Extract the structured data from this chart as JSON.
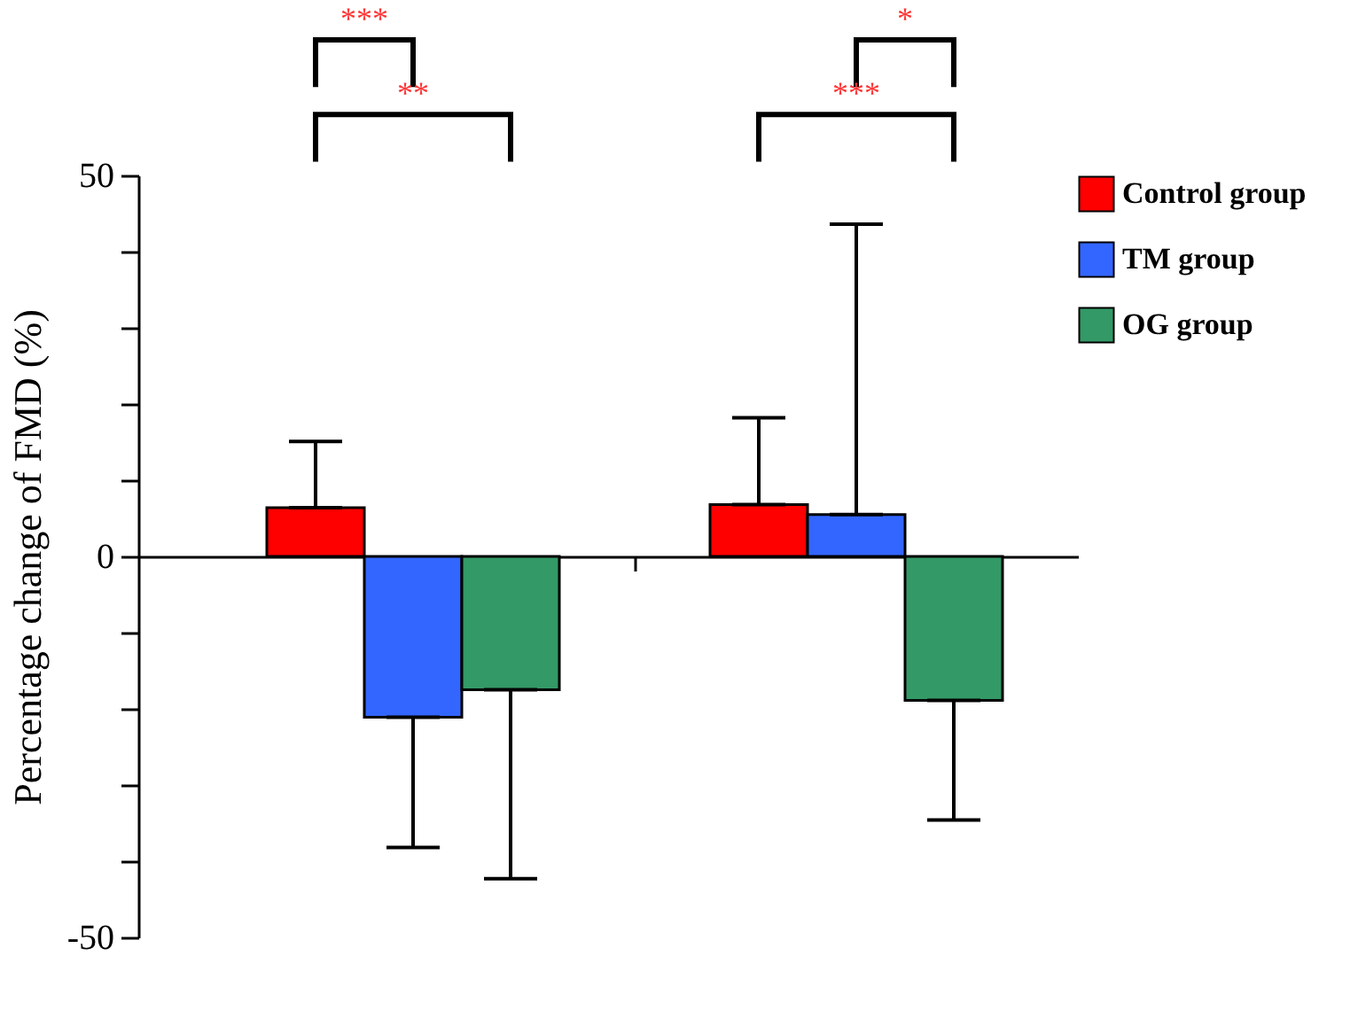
{
  "chart_data": {
    "type": "bar",
    "ylabel": "Percentage change of FMD (%)",
    "categories": [
      null,
      null
    ],
    "series": [
      {
        "name": "Control group",
        "color": "#ff0000",
        "values": [
          6.4,
          6.8
        ],
        "errors": [
          [
            6.4,
            15.1
          ],
          [
            6.8,
            18.2
          ]
        ]
      },
      {
        "name": "TM group",
        "color": "#3366ff",
        "values": [
          -21.1,
          5.5
        ],
        "errors": [
          [
            -38.2,
            -21.1
          ],
          [
            5.5,
            43.6
          ]
        ]
      },
      {
        "name": "OG group",
        "color": "#339966",
        "values": [
          -17.5,
          -18.9
        ],
        "errors": [
          [
            -42.3,
            -17.5
          ],
          [
            -34.6,
            -18.9
          ]
        ]
      }
    ],
    "ylim": [
      -50,
      50
    ],
    "yticks": [
      -50,
      {
        "value": -40,
        "label": null
      },
      {
        "value": -30,
        "label": null
      },
      {
        "value": -20,
        "label": null
      },
      {
        "value": -10,
        "label": null
      },
      0,
      {
        "value": 10,
        "label": null
      },
      {
        "value": 20,
        "label": null
      },
      {
        "value": 30,
        "label": null
      },
      {
        "value": 40,
        "label": null
      },
      50
    ],
    "legend": "top right",
    "annotations": [
      "***",
      "**",
      "*",
      "***"
    ]
  }
}
